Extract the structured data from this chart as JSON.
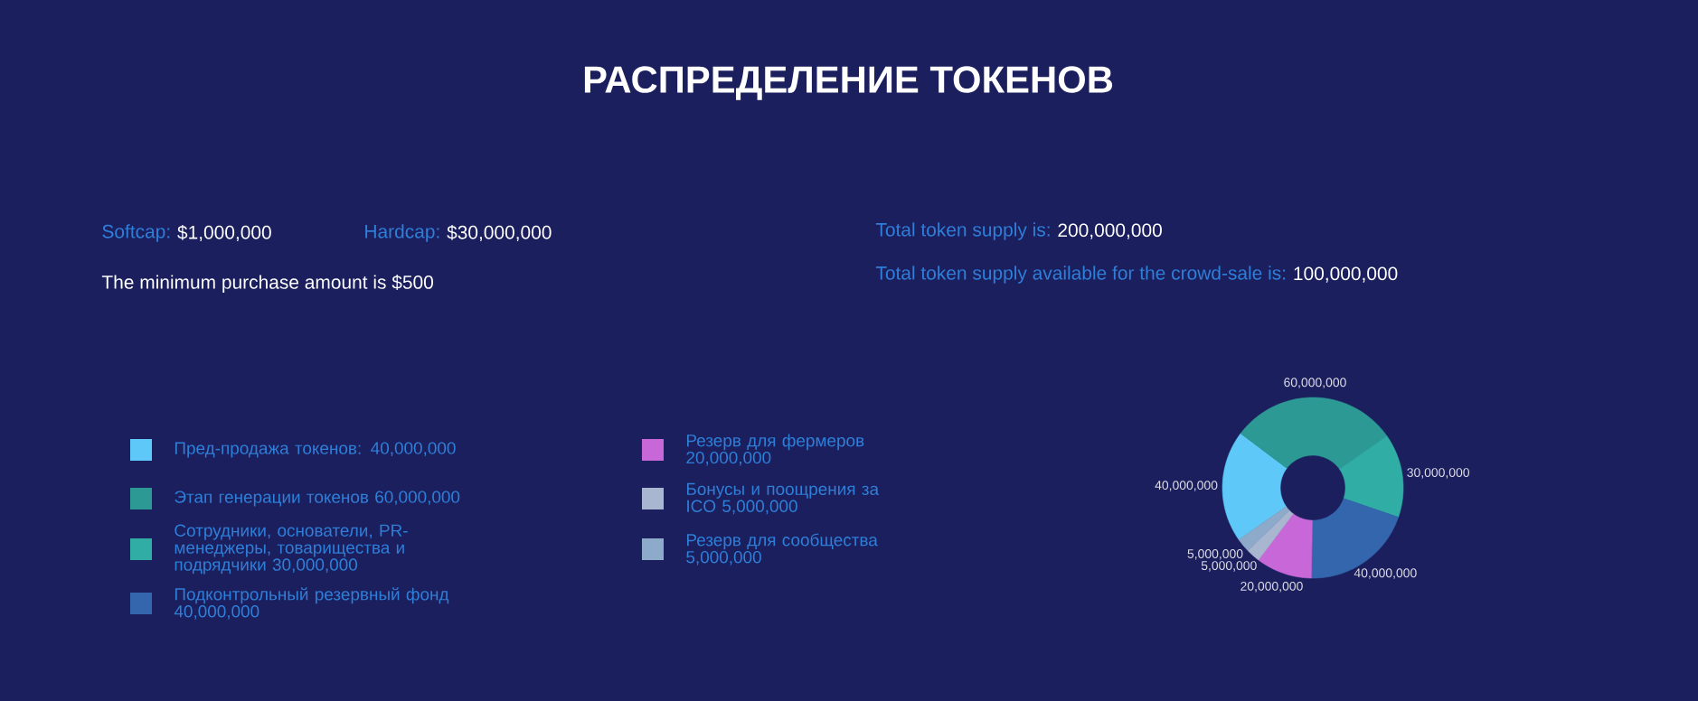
{
  "chart_data": {
    "type": "donut",
    "title": "РАСПРЕДЕЛЕНИЕ ТОКЕНОВ",
    "annotations": [
      "Softcap:",
      "$1,000,000",
      "Hardcap:",
      "$30,000,000",
      "The minimum purchase amount is $500",
      "Total token supply is:",
      "200,000,000",
      "Total token supply available for the crowd-sale is:",
      "100,000,000"
    ],
    "categories": [
      "Пред-продажа токенов: 40,000,000",
      "Этап генерации токенов 60,000,000",
      "Сотрудники, основатели, PR-менеджеры, товарищества и подрядчики 30,000,000",
      "Подконтрольный резервный фонд 40,000,000",
      "Резерв для фермеров 20,000,000",
      "Бонусы и поощрения за ICO 5,000,000",
      "Резерв для сообщества 5,000,000"
    ],
    "values": [
      40000000,
      60000000,
      30000000,
      40000000,
      20000000,
      5000000,
      5000000
    ],
    "value_labels": [
      "40,000,000",
      "60,000,000",
      "30,000,000",
      "40,000,000",
      "20,000,000",
      "5,000,000",
      "5,000,000"
    ],
    "colors": [
      "#5ec8f8",
      "#2c9994",
      "#30aea6",
      "#3366ad",
      "#c868d8",
      "#a9b6d0",
      "#8eaacb"
    ],
    "legend": "left"
  }
}
